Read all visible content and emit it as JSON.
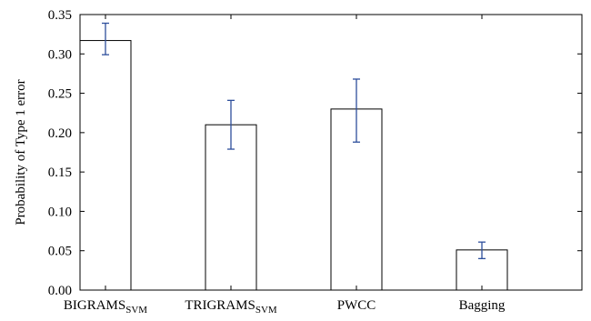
{
  "chart_data": {
    "type": "bar",
    "categories": [
      {
        "main": "BIGRAMS",
        "sub": "SVM"
      },
      {
        "main": "TRIGRAMS",
        "sub": "SVM"
      },
      {
        "main": "PWCC",
        "sub": ""
      },
      {
        "main": "Bagging",
        "sub": ""
      }
    ],
    "values": [
      0.317,
      0.21,
      0.23,
      0.051
    ],
    "error_low": [
      0.299,
      0.179,
      0.188,
      0.04
    ],
    "error_high": [
      0.339,
      0.241,
      0.268,
      0.061
    ],
    "ylabel": "Probability of Type 1 error",
    "ylim": [
      0.0,
      0.35
    ],
    "yticks": [
      "0.00",
      "0.05",
      "0.10",
      "0.15",
      "0.20",
      "0.25",
      "0.30",
      "0.35"
    ],
    "bar_fill": "#ffffff",
    "bar_stroke": "#000000",
    "error_color": "#2e4f9c",
    "grid": false
  }
}
